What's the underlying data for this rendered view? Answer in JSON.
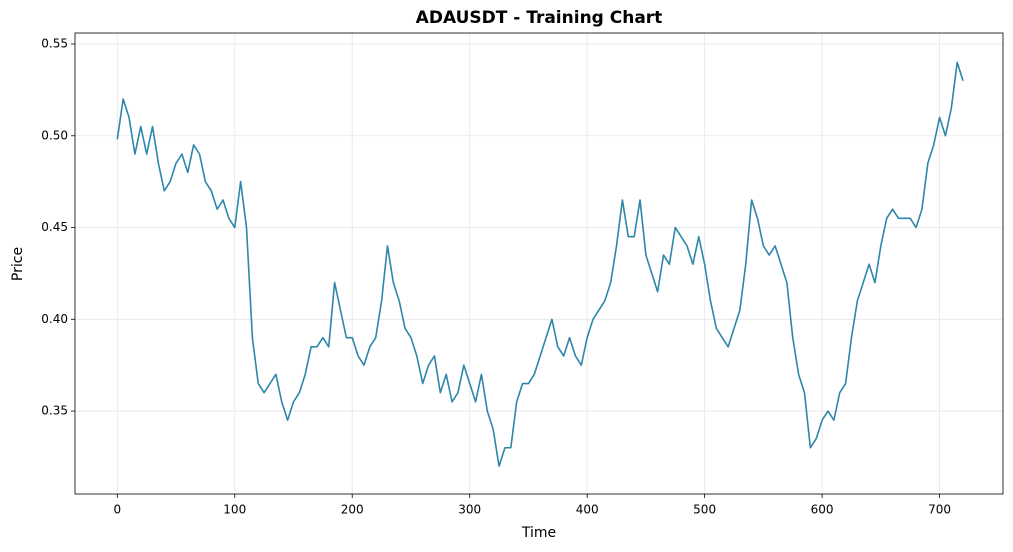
{
  "chart_data": {
    "type": "line",
    "title": "ADAUSDT - Training Chart",
    "x_label": "Time",
    "y_label": "Price",
    "x": [
      0,
      5,
      10,
      15,
      20,
      25,
      30,
      35,
      40,
      45,
      50,
      55,
      60,
      65,
      70,
      75,
      80,
      85,
      90,
      95,
      100,
      105,
      110,
      115,
      120,
      125,
      130,
      135,
      140,
      145,
      150,
      155,
      160,
      165,
      170,
      175,
      180,
      185,
      190,
      195,
      200,
      205,
      210,
      215,
      220,
      225,
      230,
      235,
      240,
      245,
      250,
      255,
      260,
      265,
      270,
      275,
      280,
      285,
      290,
      295,
      300,
      305,
      310,
      315,
      320,
      325,
      330,
      335,
      340,
      345,
      350,
      355,
      360,
      365,
      370,
      375,
      380,
      385,
      390,
      395,
      400,
      405,
      410,
      415,
      420,
      425,
      430,
      435,
      440,
      445,
      450,
      455,
      460,
      465,
      470,
      475,
      480,
      485,
      490,
      495,
      500,
      505,
      510,
      515,
      520,
      525,
      530,
      535,
      540,
      545,
      550,
      555,
      560,
      565,
      570,
      575,
      580,
      585,
      590,
      595,
      600,
      605,
      610,
      615,
      620,
      625,
      630,
      635,
      640,
      645,
      650,
      655,
      660,
      665,
      670,
      675,
      680,
      685,
      690,
      695,
      700,
      705,
      710,
      715,
      720
    ],
    "series": [
      {
        "name": "ADAUSDT",
        "color": "#2e86ab",
        "values": [
          0.498,
          0.52,
          0.51,
          0.49,
          0.505,
          0.49,
          0.505,
          0.485,
          0.47,
          0.475,
          0.485,
          0.49,
          0.48,
          0.495,
          0.49,
          0.475,
          0.47,
          0.46,
          0.465,
          0.455,
          0.45,
          0.475,
          0.45,
          0.39,
          0.365,
          0.36,
          0.365,
          0.37,
          0.355,
          0.345,
          0.355,
          0.36,
          0.37,
          0.385,
          0.385,
          0.39,
          0.385,
          0.42,
          0.405,
          0.39,
          0.39,
          0.38,
          0.375,
          0.385,
          0.39,
          0.41,
          0.44,
          0.42,
          0.41,
          0.395,
          0.39,
          0.38,
          0.365,
          0.375,
          0.38,
          0.36,
          0.37,
          0.355,
          0.36,
          0.375,
          0.365,
          0.355,
          0.37,
          0.35,
          0.34,
          0.32,
          0.33,
          0.33,
          0.355,
          0.365,
          0.365,
          0.37,
          0.38,
          0.39,
          0.4,
          0.385,
          0.38,
          0.39,
          0.38,
          0.375,
          0.39,
          0.4,
          0.405,
          0.41,
          0.42,
          0.44,
          0.465,
          0.445,
          0.445,
          0.465,
          0.435,
          0.425,
          0.415,
          0.435,
          0.43,
          0.45,
          0.445,
          0.44,
          0.43,
          0.445,
          0.43,
          0.41,
          0.395,
          0.39,
          0.385,
          0.395,
          0.405,
          0.43,
          0.465,
          0.455,
          0.44,
          0.435,
          0.44,
          0.43,
          0.42,
          0.39,
          0.37,
          0.36,
          0.33,
          0.335,
          0.345,
          0.35,
          0.345,
          0.36,
          0.365,
          0.39,
          0.41,
          0.42,
          0.43,
          0.42,
          0.44,
          0.455,
          0.46,
          0.455,
          0.455,
          0.455,
          0.45,
          0.46,
          0.485,
          0.495,
          0.51,
          0.5,
          0.515,
          0.54,
          0.53
        ]
      }
    ],
    "xlim": [
      -36,
      754
    ],
    "ylim": [
      0.3048,
      0.556
    ],
    "xticks": [
      0,
      100,
      200,
      300,
      400,
      500,
      600,
      700
    ],
    "yticks": [
      0.35,
      {
        "value": 0.4,
        "label": "0.40"
      },
      0.45,
      {
        "value": 0.5,
        "label": "0.50"
      },
      0.55
    ],
    "grid": true
  }
}
